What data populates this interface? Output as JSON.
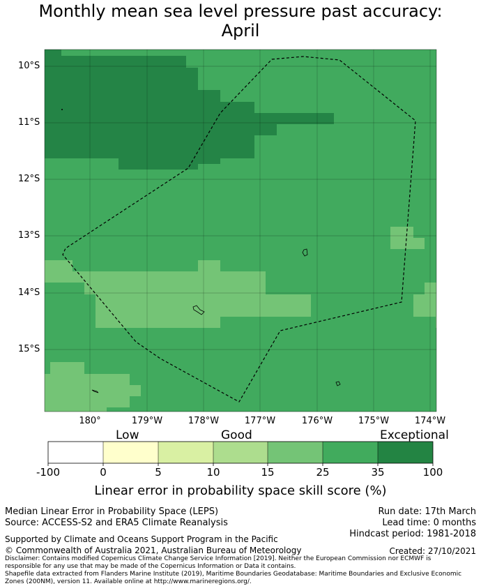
{
  "title": {
    "line1": "Monthly mean sea level pressure past accuracy:",
    "line2": "April"
  },
  "colors": {
    "background_fill": "#41aa5e",
    "exceptional": "#248446",
    "good_light": "#74c476",
    "land_outline": "#000000",
    "boundary_line": "#000000"
  },
  "map": {
    "y_ticks": [
      "10°S",
      "11°S",
      "12°S",
      "13°S",
      "14°S",
      "15°S"
    ],
    "x_ticks": [
      "180°",
      "179°W",
      "178°W",
      "177°W",
      "176°W",
      "175°W",
      "174°W"
    ],
    "lon_range": [
      179.2,
      185.85
    ],
    "lat_range": [
      -16.1,
      -9.7
    ]
  },
  "colorbar": {
    "category_labels": [
      "Low",
      "Good",
      "Exceptional"
    ],
    "ticks": [
      "-100",
      "0",
      "5",
      "10",
      "15",
      "25",
      "35",
      "100"
    ],
    "bins": [
      {
        "range": "-100 to 0",
        "color": "#ffffff"
      },
      {
        "range": "0 to 5",
        "color": "#ffffcc"
      },
      {
        "range": "5 to 10",
        "color": "#d9f0a3"
      },
      {
        "range": "10 to 15",
        "color": "#addd8e"
      },
      {
        "range": "15 to 25",
        "color": "#74c476"
      },
      {
        "range": "25 to 35",
        "color": "#41ab5d"
      },
      {
        "range": "35 to 100",
        "color": "#238443"
      }
    ],
    "title": "Linear error in probability space skill score (%)"
  },
  "footer": {
    "left_line1": "Median Linear Error in Probability Space (LEPS)",
    "left_line2": "Source: ACCESS-S2 and ERA5 Climate Reanalysis",
    "right_line1": "Run date: 17th March",
    "right_line2": "Lead time: 0 months",
    "right_line3": "Hindcast period: 1981-2018",
    "supported": "Supported by Climate and Oceans Support Program in the Pacific",
    "copyright": "© Commonwealth of Australia 2021, Australian Bureau of Meteorology",
    "created": "Created: 27/10/2021",
    "disclaimer1": "Disclaimer: Contains modified Copernicus Climate Change Service Information [2019]. Neither the European Commission nor ECMWF is",
    "disclaimer2": "responsible for any use that may be made of the Copernicus Information or Data it contains.",
    "disclaimer3": "Shapefile data extracted from Flanders Marine Institute (2019), Maritime Boundaries Geodatabase: Maritime Boundaries and Exclusive Economic",
    "disclaimer4": "Zones (200NM), version 11. Available online at http://www.marineregions.org/."
  }
}
